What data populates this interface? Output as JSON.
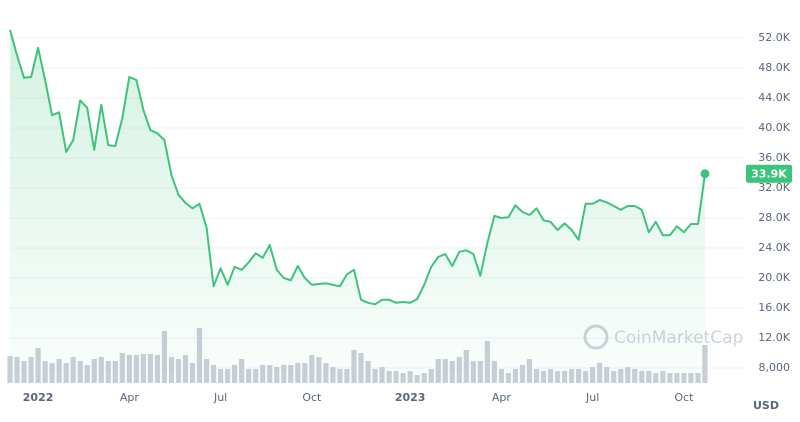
{
  "chart_data": {
    "type": "area",
    "color": "#3cc47c",
    "volume_color": "#c9ced8",
    "grid": true,
    "ylim": [
      6000,
      56000
    ],
    "yticks": [
      {
        "value": 8000,
        "label": "8,000"
      },
      {
        "value": 12000,
        "label": "12.0K"
      },
      {
        "value": 16000,
        "label": "16.0K"
      },
      {
        "value": 20000,
        "label": "20.0K"
      },
      {
        "value": 24000,
        "label": "24.0K"
      },
      {
        "value": 28000,
        "label": "28.0K"
      },
      {
        "value": 32000,
        "label": "32.0K"
      },
      {
        "value": 36000,
        "label": "36.0K"
      },
      {
        "value": 40000,
        "label": "40.0K"
      },
      {
        "value": 44000,
        "label": "44.0K"
      },
      {
        "value": 48000,
        "label": "48.0K"
      },
      {
        "value": 52000,
        "label": "52.0K"
      }
    ],
    "unit_label": "USD",
    "watermark": "CoinMarketCap",
    "categories": [
      null,
      null,
      null,
      null,
      "2022",
      null,
      null,
      null,
      null,
      null,
      null,
      null,
      null,
      null,
      null,
      null,
      null,
      "Apr",
      null,
      null,
      null,
      null,
      null,
      null,
      null,
      null,
      null,
      null,
      null,
      null,
      "Jul",
      null,
      null,
      null,
      null,
      null,
      null,
      null,
      null,
      null,
      null,
      null,
      null,
      "Oct",
      null,
      null,
      null,
      null,
      null,
      null,
      null,
      null,
      null,
      null,
      null,
      null,
      null,
      "2023",
      null,
      null,
      null,
      null,
      null,
      null,
      null,
      null,
      null,
      null,
      null,
      null,
      "Apr",
      null,
      null,
      null,
      null,
      null,
      null,
      null,
      null,
      null,
      null,
      null,
      null,
      "Jul",
      null,
      null,
      null,
      null,
      null,
      null,
      null,
      null,
      null,
      null,
      null,
      null,
      "Oct",
      null,
      null,
      null
    ],
    "values": [
      53100,
      49700,
      46700,
      46800,
      50700,
      46400,
      41700,
      42100,
      36800,
      38400,
      43700,
      42700,
      37100,
      43100,
      37700,
      37600,
      41300,
      46800,
      46400,
      42400,
      39700,
      39300,
      38400,
      33700,
      31100,
      30000,
      29300,
      29900,
      26700,
      18900,
      21300,
      19100,
      21500,
      21100,
      22100,
      23300,
      22700,
      24400,
      21100,
      20000,
      19700,
      21600,
      20000,
      19100,
      19200,
      19300,
      19100,
      18900,
      20500,
      21100,
      17100,
      16700,
      16500,
      17100,
      17100,
      16700,
      16800,
      16700,
      17200,
      19100,
      21500,
      22800,
      23200,
      21600,
      23500,
      23700,
      23200,
      20300,
      24700,
      28300,
      28000,
      28100,
      29700,
      28800,
      28400,
      29300,
      27700,
      27500,
      26400,
      27300,
      26400,
      25100,
      29900,
      29900,
      30400,
      30100,
      29600,
      29100,
      29600,
      29600,
      29100,
      26100,
      27500,
      25700,
      25700,
      26900,
      26100,
      27200,
      27200,
      33900
    ],
    "value_labels": [
      null,
      null,
      null,
      null,
      null,
      null,
      null,
      null,
      null,
      null,
      null,
      null,
      null,
      null,
      null,
      null,
      null,
      null,
      null,
      null,
      null,
      null,
      null,
      null,
      null,
      null,
      null,
      null,
      null,
      null,
      null,
      null,
      null,
      null,
      null,
      null,
      null,
      null,
      null,
      null,
      null,
      null,
      null,
      null,
      null,
      null,
      null,
      null,
      null,
      null,
      null,
      null,
      null,
      null,
      null,
      null,
      null,
      null,
      null,
      null,
      null,
      null,
      null,
      null,
      null,
      null,
      null,
      null,
      null,
      null,
      null,
      null,
      null,
      null,
      null,
      null,
      null,
      null,
      null,
      null,
      null,
      null,
      null,
      null,
      null,
      null,
      null,
      null,
      null,
      null,
      null,
      null,
      null,
      null,
      null,
      null,
      null,
      null,
      null,
      "33.9K"
    ],
    "volume": [
      27,
      26,
      22,
      26,
      35,
      22,
      20,
      24,
      20,
      26,
      22,
      18,
      24,
      26,
      22,
      22,
      30,
      28,
      28,
      29,
      29,
      28,
      52,
      26,
      24,
      28,
      20,
      55,
      24,
      18,
      14,
      14,
      18,
      24,
      14,
      14,
      18,
      18,
      16,
      18,
      18,
      20,
      20,
      28,
      26,
      20,
      16,
      14,
      14,
      33,
      30,
      22,
      14,
      16,
      12,
      12,
      10,
      12,
      8,
      10,
      14,
      24,
      24,
      22,
      26,
      33,
      22,
      22,
      42,
      22,
      14,
      10,
      14,
      18,
      24,
      14,
      12,
      14,
      12,
      12,
      14,
      14,
      12,
      16,
      20,
      16,
      12,
      14,
      16,
      14,
      12,
      12,
      10,
      12,
      10,
      10,
      10,
      10,
      10,
      38
    ]
  }
}
